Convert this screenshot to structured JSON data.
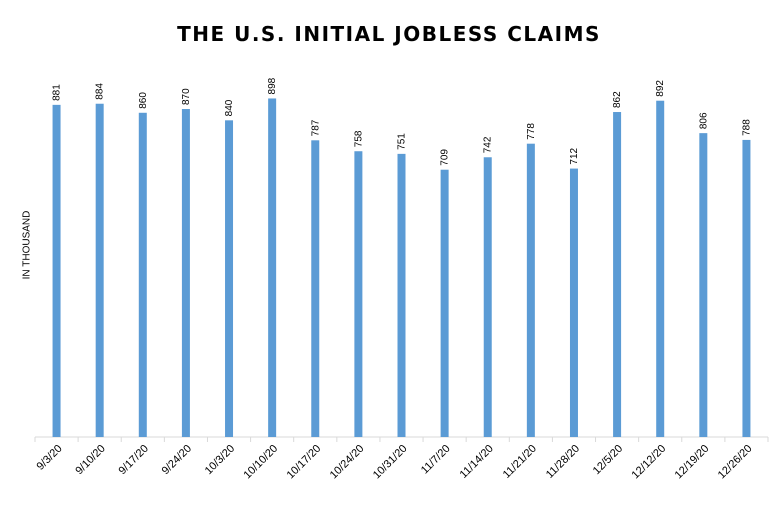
{
  "chart_data": {
    "type": "bar",
    "title": "THE U.S. INITIAL JOBLESS CLAIMS",
    "xlabel": "",
    "ylabel": "IN THOUSAND",
    "ylim": [
      0,
      1000
    ],
    "grid": false,
    "categories": [
      "9/3/20",
      "9/10/20",
      "9/17/20",
      "9/24/20",
      "10/3/20",
      "10/10/20",
      "10/17/20",
      "10/24/20",
      "10/31/20",
      "11/7/20",
      "11/14/20",
      "11/21/20",
      "11/28/20",
      "12/5/20",
      "12/12/20",
      "12/19/20",
      "12/26/20"
    ],
    "values": [
      881,
      884,
      860,
      870,
      840,
      898,
      787,
      758,
      751,
      709,
      742,
      778,
      712,
      862,
      892,
      806,
      788
    ],
    "bar_color": "#5b9bd5"
  }
}
